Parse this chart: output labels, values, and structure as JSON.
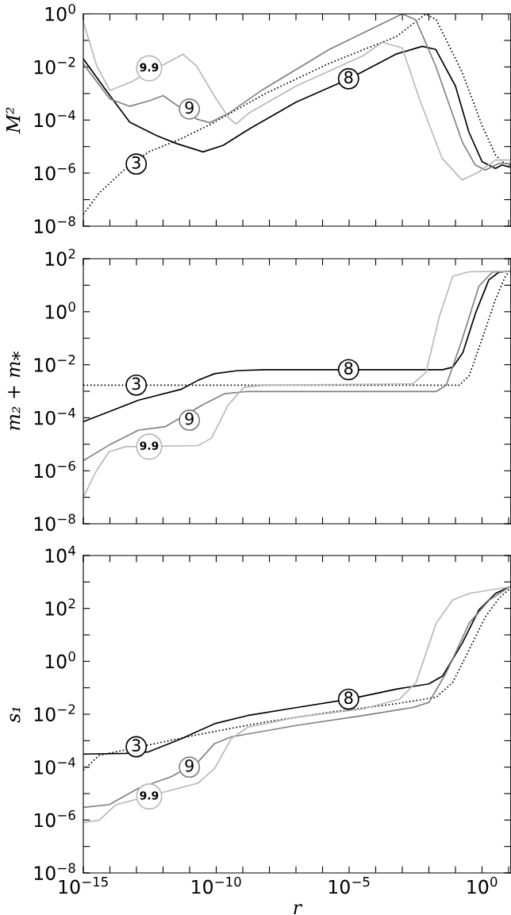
{
  "chart_data": [
    {
      "type": "line",
      "ylabel": "M²",
      "log": "xy",
      "xlim": [
        1e-15,
        12
      ],
      "ylim": [
        1e-08,
        1
      ],
      "tick_labels": "y",
      "grid": false,
      "xticks": [
        {
          "value": 1e-15,
          "label": null
        },
        {
          "value": 1e-14,
          "label": null
        },
        {
          "value": 1e-13,
          "label": null
        },
        {
          "value": 1e-12,
          "label": null
        },
        {
          "value": 1e-11,
          "label": null
        },
        {
          "value": 1e-10,
          "label": null
        },
        {
          "value": 1e-09,
          "label": null
        },
        {
          "value": 1e-08,
          "label": null
        },
        {
          "value": 1e-07,
          "label": null
        },
        {
          "value": 1e-06,
          "label": null
        },
        {
          "value": 1e-05,
          "label": null
        },
        {
          "value": 0.0001,
          "label": null
        },
        {
          "value": 0.001,
          "label": null
        },
        {
          "value": 0.01,
          "label": null
        },
        {
          "value": 0.1,
          "label": null
        },
        {
          "value": 1,
          "label": null
        },
        {
          "value": 10,
          "label": null
        }
      ],
      "yticks": [
        {
          "value": 1e-08,
          "label": "10$^{−8}$"
        },
        {
          "value": 1e-07,
          "label": null
        },
        {
          "value": 1e-06,
          "label": "10$^{−6}$"
        },
        {
          "value": 1e-05,
          "label": null
        },
        {
          "value": 0.0001,
          "label": "10$^{−4}$"
        },
        {
          "value": 0.001,
          "label": null
        },
        {
          "value": 0.01,
          "label": "10$^{−2}$"
        },
        {
          "value": 0.1,
          "label": null
        },
        {
          "value": 1,
          "label": "10$^{0}$"
        }
      ],
      "series": [
        {
          "color": "#000000",
          "line_style": "dotted",
          "x": [
            1e-15,
            4e-15,
            3.9e-14,
            2.9e-13,
            5e-12,
            6.6e-11,
            3.7e-10,
            6.5e-09,
            1.9e-06,
            0.0006,
            0.0078,
            0.019,
            0.18,
            1,
            3.2,
            5.6,
            11
          ],
          "values": [
            2.8e-08,
            1.8e-07,
            1.5e-06,
            6.3e-06,
            2e-05,
            7.2e-05,
            0.00019,
            0.00095,
            0.014,
            0.14,
            1,
            0.6,
            0.0062,
            6.3e-05,
            4.8e-06,
            2.7e-06,
            2e-06
          ]
        },
        {
          "color": "#000000",
          "line_style": "solid",
          "x": [
            1e-15,
            1e-14,
            5.6e-14,
            5.6e-13,
            3.2e-12,
            3.2e-11,
            1.8e-10,
            1.8e-09,
            1e-07,
            1e-05,
            0.00056,
            0.0056,
            0.018,
            0.1,
            0.32,
            1,
            3.2,
            5.6,
            11
          ],
          "values": [
            0.02,
            0.00083,
            8.3e-05,
            2.6e-05,
            1.3e-05,
            6.3e-06,
            1.1e-05,
            4.7e-05,
            0.00047,
            0.0036,
            0.03,
            0.06,
            0.046,
            0.0019,
            3.5e-05,
            2.7e-06,
            1.5e-06,
            2e-06,
            1.7e-06
          ]
        },
        {
          "color": "#808080",
          "line_style": "solid",
          "x": [
            1e-15,
            1e-14,
            5.6e-14,
            3.2e-13,
            1e-12,
            1.8e-11,
            5.6e-11,
            3.2e-10,
            5.6e-09,
            1.8e-06,
            0.001,
            0.0032,
            0.018,
            0.18,
            0.56,
            1.35,
            4.3,
            11
          ],
          "values": [
            0.013,
            0.00062,
            0.00033,
            0.00054,
            0.00083,
            0.00011,
            7.9e-05,
            0.00019,
            0.0014,
            0.046,
            1,
            0.6,
            0.011,
            1.5e-05,
            2e-06,
            1.3e-06,
            2.3e-06,
            2.3e-06
          ]
        },
        {
          "color": "#b8b8b8",
          "line_style": "solid",
          "x": [
            1e-15,
            3.2e-15,
            1e-14,
            5.6e-14,
            5.6e-12,
            1.8e-11,
            1e-10,
            3.2e-10,
            5.6e-10,
            1.8e-09,
            1e-07,
            3.2e-05,
            0.00018,
            0.001,
            0.0044,
            0.032,
            0.18,
            0.76,
            3.2,
            11
          ],
          "values": [
            0.51,
            0.011,
            0.0013,
            0.0026,
            0.03,
            0.011,
            0.00062,
            0.00011,
            7.2e-05,
            0.00019,
            0.0019,
            0.026,
            0.085,
            0.052,
            0.00062,
            3.5e-06,
            5.5e-07,
            1.1e-06,
            3.1e-06,
            3.1e-06
          ]
        }
      ],
      "annotations": [
        {
          "text": "9.9",
          "x": 3e-13,
          "y": 0.0089
        },
        {
          "text": "9",
          "x": 9.8e-12,
          "y": 0.00026
        },
        {
          "text": "8",
          "x": 9.5e-06,
          "y": 0.0036
        },
        {
          "text": "3",
          "x": 9.8e-14,
          "y": 2.2e-06
        }
      ]
    },
    {
      "type": "line",
      "ylabel": "m₂ + m⁎",
      "log": "xy",
      "xlim": [
        1e-15,
        12
      ],
      "ylim": [
        1e-08,
        100
      ],
      "tick_labels": "y",
      "grid": false,
      "xticks": [
        {
          "value": 1e-15,
          "label": null
        },
        {
          "value": 1e-14,
          "label": null
        },
        {
          "value": 1e-13,
          "label": null
        },
        {
          "value": 1e-12,
          "label": null
        },
        {
          "value": 1e-11,
          "label": null
        },
        {
          "value": 1e-10,
          "label": null
        },
        {
          "value": 1e-09,
          "label": null
        },
        {
          "value": 1e-08,
          "label": null
        },
        {
          "value": 1e-07,
          "label": null
        },
        {
          "value": 1e-06,
          "label": null
        },
        {
          "value": 1e-05,
          "label": null
        },
        {
          "value": 0.0001,
          "label": null
        },
        {
          "value": 0.001,
          "label": null
        },
        {
          "value": 0.01,
          "label": null
        },
        {
          "value": 0.1,
          "label": null
        },
        {
          "value": 1,
          "label": null
        },
        {
          "value": 10,
          "label": null
        }
      ],
      "yticks": [
        {
          "value": 1e-08,
          "label": "10$^{−8}$"
        },
        {
          "value": 1e-07,
          "label": null
        },
        {
          "value": 1e-06,
          "label": "10$^{−6}$"
        },
        {
          "value": 1e-05,
          "label": null
        },
        {
          "value": 0.0001,
          "label": "10$^{−4}$"
        },
        {
          "value": 0.001,
          "label": null
        },
        {
          "value": 0.01,
          "label": "10$^{−2}$"
        },
        {
          "value": 0.1,
          "label": null
        },
        {
          "value": 1,
          "label": "10$^{0}$"
        },
        {
          "value": 10,
          "label": null
        },
        {
          "value": 100,
          "label": "10$^{2}$"
        }
      ],
      "series": [
        {
          "color": "#000000",
          "line_style": "dotted",
          "x": [
            1e-15,
            0.14,
            0.33,
            1,
            3.2,
            7.6,
            11
          ],
          "values": [
            0.0017,
            0.0017,
            0.0039,
            0.093,
            2.9,
            22,
            34
          ]
        },
        {
          "color": "#000000",
          "line_style": "solid",
          "x": [
            1e-15,
            9.3e-15,
            1.2e-13,
            5e-12,
            2.1e-11,
            8.7e-11,
            6.5e-10,
            6.5e-09,
            0.033,
            0.079,
            0.19,
            0.58,
            1.8,
            4.3,
            11
          ],
          "values": [
            7.1e-05,
            0.00017,
            0.00046,
            0.0012,
            0.0026,
            0.0046,
            0.006,
            0.0065,
            0.0065,
            0.0081,
            0.029,
            0.93,
            16,
            31,
            34
          ]
        },
        {
          "color": "#808080",
          "line_style": "solid",
          "x": [
            1e-15,
            9.3e-15,
            1.2e-13,
            1.2e-12,
            3.7e-11,
            2.1e-10,
            1.5e-09,
            0.019,
            0.045,
            0.18,
            0.76,
            2.4,
            11
          ],
          "values": [
            2.4e-06,
            9.3e-06,
            3.4e-05,
            4.6e-05,
            0.00034,
            0.00081,
            0.00098,
            0.00098,
            0.0017,
            0.093,
            9.1,
            31,
            34
          ]
        },
        {
          "color": "#b8b8b8",
          "line_style": "solid",
          "x": [
            1e-15,
            3e-15,
            9.3e-15,
            3.9e-14,
            2.1e-11,
            6.6e-11,
            2.8e-10,
            1.1e-09,
            6.5e-09,
            0.0025,
            0.0078,
            0.025,
            0.079,
            0.33,
            11
          ],
          "values": [
            1e-07,
            9.3e-07,
            5.2e-06,
            8.1e-06,
            8.9e-06,
            1.7e-05,
            0.0003,
            0.0014,
            0.0017,
            0.0019,
            0.0052,
            0.69,
            22,
            32,
            34
          ]
        }
      ],
      "annotations": [
        {
          "text": "3",
          "x": 9.8e-14,
          "y": 0.0017
        },
        {
          "text": "8",
          "x": 9.5e-06,
          "y": 0.0065
        },
        {
          "text": "9",
          "x": 9.8e-12,
          "y": 8.1e-05
        },
        {
          "text": "9.9",
          "x": 3e-13,
          "y": 8.1e-06
        }
      ]
    },
    {
      "type": "line",
      "ylabel": "s₁",
      "xlabel": "r",
      "log": "xy",
      "xlim": [
        1e-15,
        12
      ],
      "ylim": [
        1e-08,
        10000.0
      ],
      "grid": false,
      "xticks": [
        {
          "value": 1e-15,
          "label": "10$^{−15}$"
        },
        {
          "value": 1e-14,
          "label": null
        },
        {
          "value": 1e-13,
          "label": null
        },
        {
          "value": 1e-12,
          "label": null
        },
        {
          "value": 1e-11,
          "label": null
        },
        {
          "value": 1e-10,
          "label": "10$^{−10}$"
        },
        {
          "value": 1e-09,
          "label": null
        },
        {
          "value": 1e-08,
          "label": null
        },
        {
          "value": 1e-07,
          "label": null
        },
        {
          "value": 1e-06,
          "label": null
        },
        {
          "value": 1e-05,
          "label": "10$^{−5}$"
        },
        {
          "value": 0.0001,
          "label": null
        },
        {
          "value": 0.001,
          "label": null
        },
        {
          "value": 0.01,
          "label": null
        },
        {
          "value": 0.1,
          "label": null
        },
        {
          "value": 1,
          "label": "10$^{0}$"
        },
        {
          "value": 10,
          "label": null
        }
      ],
      "yticks": [
        {
          "value": 1e-08,
          "label": "10$^{−8}$"
        },
        {
          "value": 1e-07,
          "label": null
        },
        {
          "value": 1e-06,
          "label": "10$^{−6}$"
        },
        {
          "value": 1e-05,
          "label": null
        },
        {
          "value": 0.0001,
          "label": "10$^{−4}$"
        },
        {
          "value": 0.001,
          "label": null
        },
        {
          "value": 0.01,
          "label": "10$^{−2}$"
        },
        {
          "value": 0.1,
          "label": null
        },
        {
          "value": 1,
          "label": "10$^{0}$"
        },
        {
          "value": 10,
          "label": null
        },
        {
          "value": 100,
          "label": "10$^{2}$"
        },
        {
          "value": 1000,
          "label": null
        },
        {
          "value": 10000.0,
          "label": "10$^{4}$"
        }
      ],
      "series": [
        {
          "color": "#000000",
          "line_style": "dotted",
          "x": [
            1e-15,
            4e-15,
            2.1e-11,
            6.5e-09,
            1.9e-06,
            0.0006,
            0.019,
            0.079,
            0.33,
            1.35,
            4.3,
            11
          ],
          "values": [
            7.8e-05,
            0.00028,
            0.0017,
            0.005,
            0.012,
            0.025,
            0.044,
            0.16,
            2.8,
            49,
            240,
            560
          ]
        },
        {
          "color": "#000000",
          "line_style": "solid",
          "x": [
            1e-15,
            3.9e-14,
            2.9e-13,
            5e-12,
            8.7e-11,
            1.5e-09,
            1.1e-07,
            9.5e-06,
            0.0006,
            0.01,
            0.033,
            0.18,
            0.76,
            3.2,
            11
          ],
          "values": [
            0.00031,
            0.00033,
            0.00038,
            0.0012,
            0.0044,
            0.0089,
            0.018,
            0.037,
            0.089,
            0.14,
            0.28,
            4.9,
            87,
            370,
            660
          ]
        },
        {
          "color": "#808080",
          "line_style": "solid",
          "x": [
            1e-15,
            9.3e-15,
            1.2e-13,
            2.1e-12,
            2.1e-11,
            8.7e-11,
            3.7e-10,
            1.1e-07,
            3.4e-05,
            0.0025,
            0.01,
            0.045,
            0.33,
            1.9,
            11
          ],
          "values": [
            3e-06,
            3.8e-06,
            1.6e-05,
            4.4e-05,
            0.00016,
            0.00078,
            0.0014,
            0.0038,
            0.0089,
            0.018,
            0.028,
            0.37,
            28,
            210,
            660
          ]
        },
        {
          "color": "#b8b8b8",
          "line_style": "solid",
          "x": [
            1e-15,
            4e-15,
            1.7e-14,
            2.1e-11,
            8.7e-11,
            3.7e-10,
            1.5e-09,
            1.1e-07,
            3.4e-05,
            0.00079,
            0.0033,
            0.019,
            0.079,
            0.33,
            11
          ],
          "values": [
            7.9e-07,
            1e-06,
            3.8e-06,
            2.5e-05,
            8.9e-05,
            0.0012,
            0.0032,
            0.0078,
            0.016,
            0.037,
            0.16,
            28,
            210,
            370,
            660
          ]
        }
      ],
      "annotations": [
        {
          "text": "3",
          "x": 9.8e-14,
          "y": 0.00059
        },
        {
          "text": "8",
          "x": 9.5e-06,
          "y": 0.037
        },
        {
          "text": "9",
          "x": 9.8e-12,
          "y": 0.0001
        },
        {
          "text": "9.9",
          "x": 3e-13,
          "y": 7.8e-06
        }
      ]
    }
  ]
}
